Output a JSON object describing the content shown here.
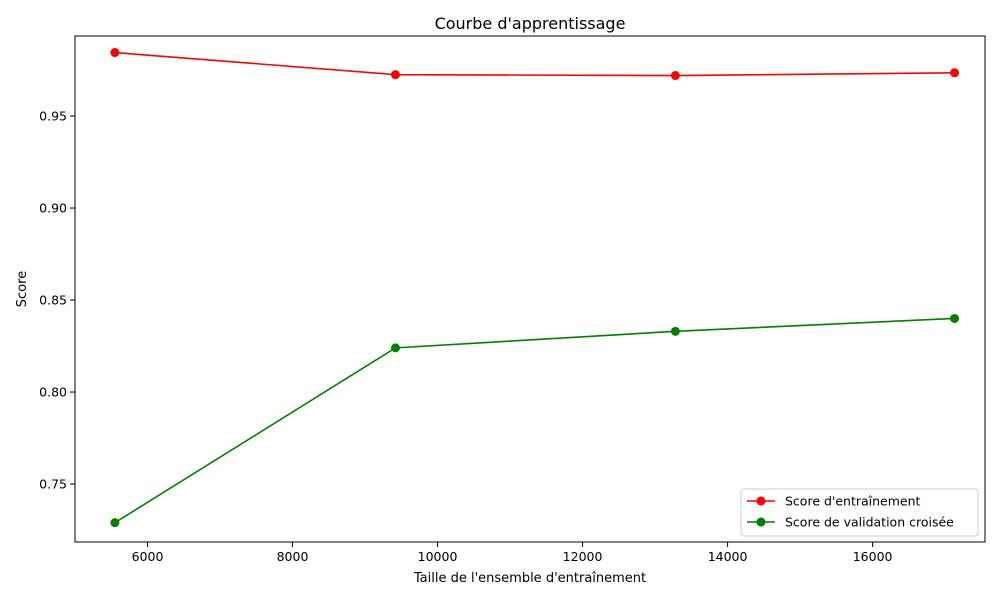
{
  "chart_data": {
    "type": "line",
    "title": "Courbe d'apprentissage",
    "xlabel": "Taille de l'ensemble d'entraînement",
    "ylabel": "Score",
    "xlim": [
      5000,
      17550
    ],
    "ylim": [
      0.7185,
      0.9935
    ],
    "x_ticks": [
      6000,
      8000,
      10000,
      12000,
      14000,
      16000
    ],
    "y_ticks": [
      0.75,
      0.8,
      0.85,
      0.9,
      0.95
    ],
    "x_tick_labels": [
      "6000",
      "8000",
      "10000",
      "12000",
      "14000",
      "16000"
    ],
    "y_tick_labels": [
      "0.75",
      "0.80",
      "0.85",
      "0.90",
      "0.95"
    ],
    "grid": false,
    "legend_position": "bottom-right",
    "series": [
      {
        "name": "Score d'entraînement",
        "color": "#ff0000",
        "marker": "circle",
        "x": [
          5550,
          9420,
          13280,
          17130
        ],
        "y": [
          0.9845,
          0.9725,
          0.972,
          0.9735
        ]
      },
      {
        "name": "Score de validation croisée",
        "color": "#008000",
        "marker": "circle",
        "x": [
          5550,
          9420,
          13280,
          17130
        ],
        "y": [
          0.729,
          0.824,
          0.833,
          0.84
        ]
      }
    ]
  }
}
